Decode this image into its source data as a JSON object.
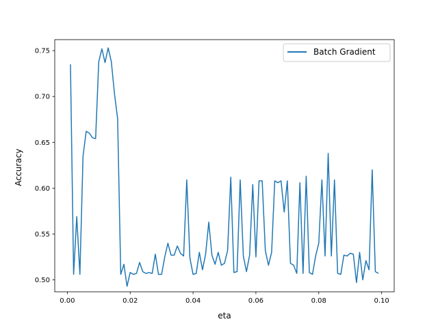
{
  "chart_data": {
    "type": "line",
    "title": "",
    "xlabel": "eta",
    "ylabel": "Accuracy",
    "xlim": [
      -0.004,
      0.104
    ],
    "ylim": [
      0.487,
      0.762
    ],
    "xticks": [
      0.0,
      0.02,
      0.04,
      0.06,
      0.08,
      0.1
    ],
    "xtick_labels": [
      "0.00",
      "0.02",
      "0.04",
      "0.06",
      "0.08",
      "0.10"
    ],
    "yticks": [
      0.5,
      0.55,
      0.6,
      0.65,
      0.7,
      0.75
    ],
    "ytick_labels": [
      "0.50",
      "0.55",
      "0.60",
      "0.65",
      "0.70",
      "0.75"
    ],
    "grid": false,
    "legend_position": "top-right",
    "series": [
      {
        "name": "Batch Gradient",
        "color": "#1f77b4",
        "x": [
          0.001,
          0.002,
          0.003,
          0.004,
          0.005,
          0.006,
          0.007,
          0.008,
          0.009,
          0.01,
          0.011,
          0.012,
          0.013,
          0.014,
          0.015,
          0.016,
          0.017,
          0.018,
          0.019,
          0.02,
          0.021,
          0.022,
          0.023,
          0.024,
          0.025,
          0.026,
          0.027,
          0.028,
          0.029,
          0.03,
          0.031,
          0.032,
          0.033,
          0.034,
          0.035,
          0.036,
          0.037,
          0.038,
          0.039,
          0.04,
          0.041,
          0.042,
          0.043,
          0.044,
          0.045,
          0.046,
          0.047,
          0.048,
          0.049,
          0.05,
          0.051,
          0.052,
          0.053,
          0.054,
          0.055,
          0.056,
          0.057,
          0.058,
          0.059,
          0.06,
          0.061,
          0.062,
          0.063,
          0.064,
          0.065,
          0.066,
          0.067,
          0.068,
          0.069,
          0.07,
          0.071,
          0.072,
          0.073,
          0.074,
          0.075,
          0.076,
          0.077,
          0.078,
          0.079,
          0.08,
          0.081,
          0.082,
          0.083,
          0.084,
          0.085,
          0.086,
          0.087,
          0.088,
          0.089,
          0.09,
          0.091,
          0.092,
          0.093,
          0.094,
          0.095,
          0.096,
          0.097,
          0.098,
          0.099
        ],
        "values": [
          0.735,
          0.506,
          0.569,
          0.506,
          0.635,
          0.662,
          0.66,
          0.655,
          0.654,
          0.738,
          0.752,
          0.737,
          0.753,
          0.738,
          0.703,
          0.676,
          0.506,
          0.517,
          0.493,
          0.508,
          0.506,
          0.507,
          0.519,
          0.509,
          0.507,
          0.508,
          0.507,
          0.528,
          0.506,
          0.506,
          0.525,
          0.54,
          0.527,
          0.527,
          0.537,
          0.529,
          0.526,
          0.609,
          0.524,
          0.506,
          0.507,
          0.53,
          0.511,
          0.528,
          0.563,
          0.527,
          0.517,
          0.53,
          0.516,
          0.518,
          0.532,
          0.612,
          0.508,
          0.509,
          0.609,
          0.526,
          0.509,
          0.527,
          0.604,
          0.525,
          0.608,
          0.608,
          0.532,
          0.516,
          0.53,
          0.608,
          0.606,
          0.608,
          0.574,
          0.608,
          0.518,
          0.516,
          0.507,
          0.606,
          0.507,
          0.613,
          0.508,
          0.506,
          0.526,
          0.54,
          0.609,
          0.526,
          0.638,
          0.526,
          0.609,
          0.507,
          0.506,
          0.527,
          0.526,
          0.529,
          0.528,
          0.497,
          0.53,
          0.5,
          0.521,
          0.511,
          0.62,
          0.509,
          0.507
        ]
      }
    ]
  }
}
